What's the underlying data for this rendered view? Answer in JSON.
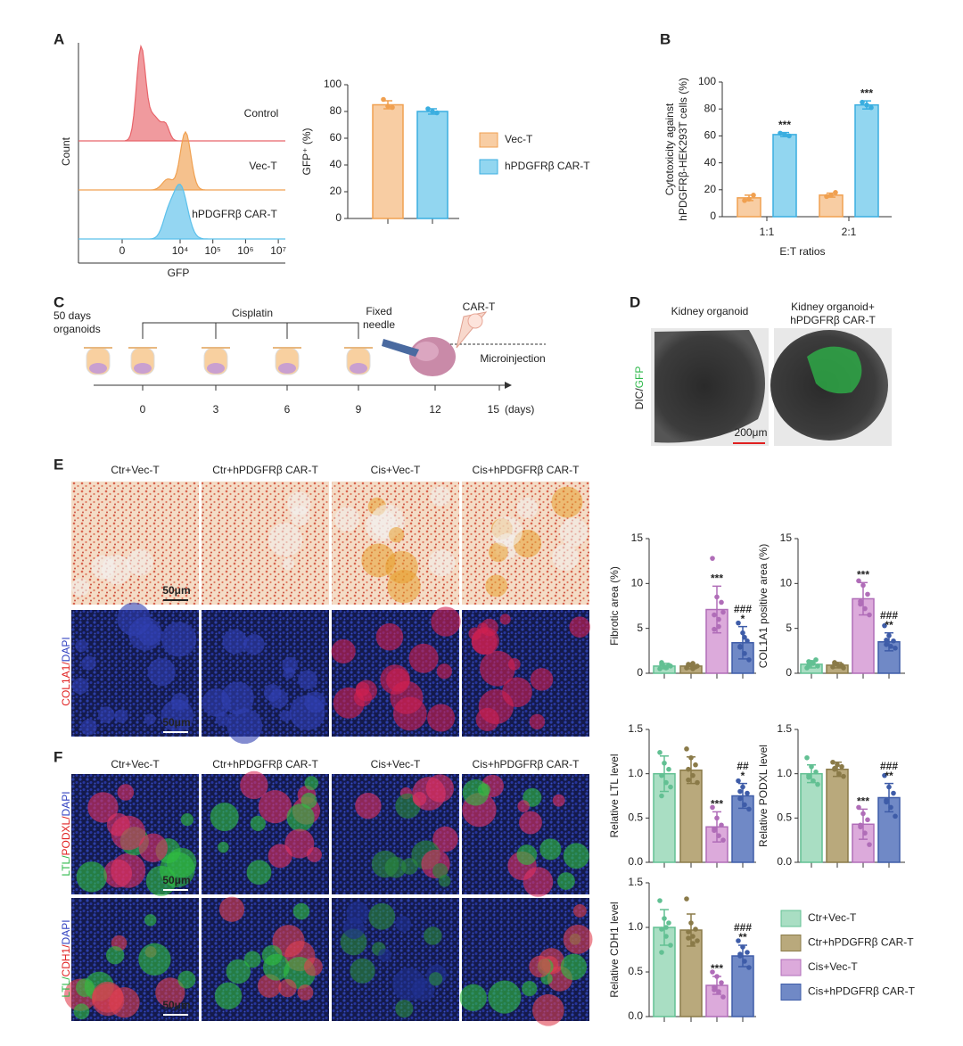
{
  "panel_labels": [
    "A",
    "B",
    "C",
    "D",
    "E",
    "F"
  ],
  "chart_data": [
    {
      "type": "flow-histogram",
      "xlabel": "GFP",
      "ylabel": "Count",
      "xscale": "symlog",
      "xticks": [
        {
          "value": 0,
          "label": "0"
        },
        {
          "value": 10000,
          "label": "10⁴"
        },
        {
          "value": 100000,
          "label": "10⁵"
        },
        {
          "value": 1000000,
          "label": "10⁶"
        },
        {
          "value": 10000000,
          "label": "10⁷"
        }
      ],
      "series": [
        {
          "name": "Control",
          "color": "#e8646a"
        },
        {
          "name": "Vec-T",
          "color": "#f0a050"
        },
        {
          "name": "hPDGFRβ CAR-T",
          "color": "#5bc0eb"
        }
      ]
    },
    {
      "type": "bar",
      "ylabel": "GFP⁺ (%)",
      "ylim": [
        0,
        100
      ],
      "yticks": [
        0,
        20,
        40,
        60,
        80,
        100
      ],
      "categories": [
        null
      ],
      "series": [
        {
          "name": "Vec-T",
          "color": "#f8cda3",
          "edge": "#f0a050",
          "values": [
            85
          ],
          "errors": [
            3
          ],
          "points": [
            [
              89,
              84,
              83
            ]
          ]
        },
        {
          "name": "hPDGFRβ CAR-T",
          "color": "#92d6f0",
          "edge": "#3aaee0",
          "values": [
            80
          ],
          "errors": [
            2
          ],
          "points": [
            [
              82,
              80,
              79
            ]
          ]
        }
      ]
    },
    {
      "type": "bar",
      "ylabel": [
        "Cytotoxicity against",
        "hPDGFRβ-HEK293T cells (%)"
      ],
      "xlabel": "E:T ratios",
      "ylim": [
        0,
        100
      ],
      "yticks": [
        0,
        20,
        40,
        60,
        80,
        100
      ],
      "categories": [
        "1:1",
        "2:1"
      ],
      "series": [
        {
          "color": "#f8cda3",
          "edge": "#f0a050",
          "values": [
            14,
            16
          ],
          "errors": [
            2,
            1.5
          ],
          "points": [
            [
              12,
              13,
              16
            ],
            [
              15,
              16,
              18
            ]
          ],
          "annotations": [
            null,
            null
          ]
        },
        {
          "color": "#92d6f0",
          "edge": "#3aaee0",
          "values": [
            61,
            83
          ],
          "errors": [
            1.5,
            3
          ],
          "points": [
            [
              62,
              61,
              60
            ],
            [
              85,
              83,
              81
            ]
          ],
          "annotations": [
            "***",
            "***"
          ]
        }
      ]
    },
    {
      "type": "bar",
      "ylabel": "Fibrotic area (%)",
      "ylim": [
        0,
        15
      ],
      "yticks": [
        0,
        5,
        10,
        15
      ],
      "categories": [
        null,
        null,
        null,
        null
      ],
      "values": [
        0.8,
        0.8,
        7.1,
        3.4
      ],
      "errors": [
        0.3,
        0.3,
        2.6,
        1.8
      ],
      "points": [
        [
          0.5,
          0.7,
          0.9,
          1.0,
          0.6,
          0.8,
          1.2,
          0.7
        ],
        [
          0.6,
          0.9,
          0.7,
          1.0,
          0.5,
          0.8,
          0.9,
          1.1
        ],
        [
          12.8,
          8.5,
          7.9,
          6.5,
          5.2,
          6.8,
          4.9,
          6.0
        ],
        [
          5.6,
          4.5,
          3.6,
          2.9,
          2.2,
          1.5,
          3.0,
          4.0
        ]
      ],
      "annotations": [
        [],
        [],
        [
          "***"
        ],
        [
          "###",
          "*"
        ]
      ]
    },
    {
      "type": "bar",
      "ylabel": "COL1A1 positive area (%)",
      "ylim": [
        0,
        15
      ],
      "yticks": [
        0,
        5,
        10,
        15
      ],
      "categories": [
        null,
        null,
        null,
        null
      ],
      "values": [
        1.0,
        0.9,
        8.3,
        3.5
      ],
      "errors": [
        0.4,
        0.3,
        1.8,
        1.0
      ],
      "points": [
        [
          0.6,
          1.2,
          1.5,
          0.9,
          1.1,
          0.8,
          1.3
        ],
        [
          0.7,
          1.0,
          0.9,
          1.2,
          0.8,
          0.6,
          1.1
        ],
        [
          10.3,
          9.8,
          8.8,
          8.0,
          7.2,
          6.5,
          7.7
        ],
        [
          5.3,
          4.2,
          3.6,
          3.2,
          3.0,
          2.8,
          3.7
        ]
      ],
      "annotations": [
        [],
        [],
        [
          "***"
        ],
        [
          "###",
          "**"
        ]
      ]
    },
    {
      "type": "bar",
      "ylabel": "Relative LTL level",
      "ylim": [
        0,
        1.5
      ],
      "yticks": [
        {
          "value": 0,
          "label": "0.0"
        },
        0.5,
        {
          "value": 1,
          "label": "1.0"
        },
        1.5
      ],
      "categories": [
        null,
        null,
        null,
        null
      ],
      "values": [
        1.0,
        1.04,
        0.4,
        0.75
      ],
      "errors": [
        0.2,
        0.15,
        0.17,
        0.14
      ],
      "points": [
        [
          1.24,
          1.12,
          1.05,
          0.98,
          0.9,
          0.85,
          0.75
        ],
        [
          1.28,
          1.18,
          1.1,
          1.05,
          0.98,
          0.9,
          0.93
        ],
        [
          0.62,
          0.5,
          0.42,
          0.36,
          0.3,
          0.25,
          0.38
        ],
        [
          0.92,
          0.85,
          0.78,
          0.72,
          0.65,
          0.6,
          0.8
        ]
      ],
      "annotations": [
        [],
        [],
        [
          "***"
        ],
        [
          "##",
          "*"
        ]
      ]
    },
    {
      "type": "bar",
      "ylabel": "Relative PODXL level",
      "ylim": [
        0,
        1.5
      ],
      "yticks": [
        {
          "value": 0,
          "label": "0.0"
        },
        0.5,
        {
          "value": 1,
          "label": "1.0"
        },
        1.5
      ],
      "categories": [
        null,
        null,
        null,
        null
      ],
      "values": [
        1.0,
        1.05,
        0.43,
        0.73
      ],
      "errors": [
        0.1,
        0.08,
        0.17,
        0.16
      ],
      "points": [
        [
          1.18,
          1.08,
          1.02,
          0.98,
          0.92,
          0.88,
          0.96
        ],
        [
          1.13,
          1.1,
          1.08,
          1.05,
          1.0,
          0.97,
          1.06
        ],
        [
          0.62,
          0.55,
          0.48,
          0.4,
          0.33,
          0.2,
          0.42
        ],
        [
          0.98,
          0.85,
          0.78,
          0.7,
          0.62,
          0.52,
          0.68
        ]
      ],
      "annotations": [
        [],
        [],
        [
          "***"
        ],
        [
          "###",
          "**"
        ]
      ]
    },
    {
      "type": "bar",
      "ylabel": "Relative CDH1 level",
      "ylim": [
        0,
        1.5
      ],
      "yticks": [
        {
          "value": 0,
          "label": "0.0"
        },
        0.5,
        {
          "value": 1,
          "label": "1.0"
        },
        1.5
      ],
      "categories": [
        null,
        null,
        null,
        null
      ],
      "values": [
        1.0,
        0.97,
        0.35,
        0.68
      ],
      "errors": [
        0.2,
        0.18,
        0.1,
        0.12
      ],
      "points": [
        [
          1.3,
          1.1,
          1.05,
          0.98,
          0.9,
          0.8,
          0.72,
          1.0
        ],
        [
          1.32,
          1.05,
          0.98,
          0.95,
          0.9,
          0.85,
          0.88,
          0.82
        ],
        [
          0.5,
          0.45,
          0.38,
          0.33,
          0.28,
          0.22,
          0.3
        ],
        [
          0.85,
          0.78,
          0.72,
          0.68,
          0.62,
          0.55,
          0.7
        ]
      ],
      "annotations": [
        [],
        [],
        [
          "***"
        ],
        [
          "###",
          "**"
        ]
      ]
    }
  ],
  "legend": [
    {
      "name": "Ctr+Vec-T",
      "color": "#a9dec3",
      "edge": "#62c093"
    },
    {
      "name": "Ctr+hPDGFRβ CAR-T",
      "color": "#b9a97c",
      "edge": "#8a7a48"
    },
    {
      "name": "Cis+Vec-T",
      "color": "#dcaadb",
      "edge": "#b06db8"
    },
    {
      "name": "Cis+hPDGFRβ CAR-T",
      "color": "#7089c6",
      "edge": "#3e5ca8"
    }
  ],
  "timeline": {
    "start": [
      "50 days",
      "organoids"
    ],
    "treatment": "Cisplatin",
    "needle": [
      "Fixed",
      "needle"
    ],
    "cells": "CAR-T",
    "method": "Microinjection",
    "ticks": [
      0,
      3,
      6,
      9,
      12,
      15
    ],
    "unit": "(days)"
  },
  "organoid_images": {
    "titles": [
      "Kidney organoid",
      "Kidney organoid+",
      "hPDGFRβ CAR-T"
    ],
    "stain": "DIC/GFP",
    "scale": "200μm"
  },
  "histology": {
    "columns": [
      "Ctr+Vec-T",
      "Ctr+hPDGFRβ CAR-T",
      "Cis+Vec-T",
      "Cis+hPDGFRβ CAR-T"
    ],
    "scale": "50μm",
    "stains": [
      "COL1A1/DAPI",
      "LTL/PODXL/DAPI",
      "LTL/CDH1/DAPI"
    ]
  }
}
